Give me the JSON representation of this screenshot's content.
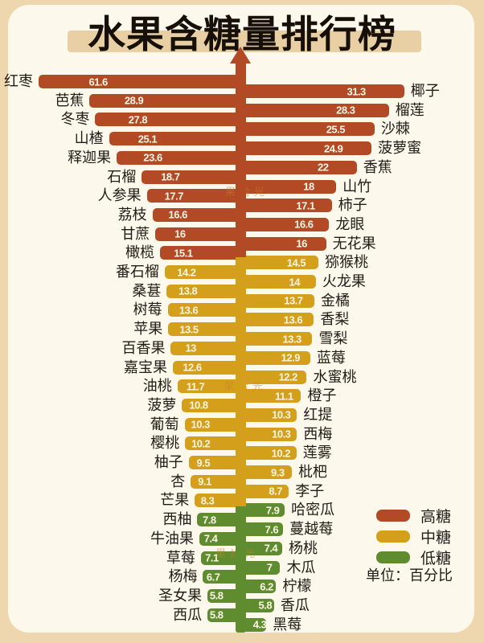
{
  "title": "水果含糖量排行榜",
  "unit_note": "单位：百分比",
  "watermark": "果拾光",
  "colors": {
    "high": "#b34a26",
    "mid": "#d4a01b",
    "low": "#5e8c2f",
    "panel": "#fdf8ec",
    "frame": "#eed7ae",
    "title_band": "#e9d0a4",
    "value_text": "#fdf6e6"
  },
  "legend": [
    {
      "label": "高糖",
      "level": "high"
    },
    {
      "label": "中糖",
      "level": "mid"
    },
    {
      "label": "低糖",
      "level": "low"
    }
  ],
  "chart_data": {
    "type": "bar",
    "orientation": "bidirectional-horizontal",
    "title": "水果含糖量排行榜",
    "unit": "百分比",
    "value_range": [
      0,
      62
    ],
    "left": [
      {
        "name": "红枣",
        "value": 61.6,
        "label": "61.6",
        "level": "high"
      },
      {
        "name": "芭蕉",
        "value": 28.9,
        "label": "28.9",
        "level": "high"
      },
      {
        "name": "冬枣",
        "value": 27.8,
        "label": "27.8",
        "level": "high"
      },
      {
        "name": "山楂",
        "value": 25.1,
        "label": "25.1",
        "level": "high"
      },
      {
        "name": "释迦果",
        "value": 23.6,
        "label": "23.6",
        "level": "high"
      },
      {
        "name": "石榴",
        "value": 18.7,
        "label": "18.7",
        "level": "high"
      },
      {
        "name": "人参果",
        "value": 17.7,
        "label": "17.7",
        "level": "high"
      },
      {
        "name": "荔枝",
        "value": 16.6,
        "label": "16.6",
        "level": "high"
      },
      {
        "name": "甘蔗",
        "value": 16,
        "label": "16",
        "level": "high"
      },
      {
        "name": "橄榄",
        "value": 15.1,
        "label": "15.1",
        "level": "high"
      },
      {
        "name": "番石榴",
        "value": 14.2,
        "label": "14.2",
        "level": "mid"
      },
      {
        "name": "桑葚",
        "value": 13.8,
        "label": "13.8",
        "level": "mid"
      },
      {
        "name": "树莓",
        "value": 13.6,
        "label": "13.6",
        "level": "mid"
      },
      {
        "name": "苹果",
        "value": 13.5,
        "label": "13.5",
        "level": "mid"
      },
      {
        "name": "百香果",
        "value": 13,
        "label": "13",
        "level": "mid"
      },
      {
        "name": "嘉宝果",
        "value": 12.6,
        "label": "12.6",
        "level": "mid"
      },
      {
        "name": "油桃",
        "value": 11.7,
        "label": "11.7",
        "level": "mid"
      },
      {
        "name": "菠萝",
        "value": 10.8,
        "label": "10.8",
        "level": "mid"
      },
      {
        "name": "葡萄",
        "value": 10.3,
        "label": "10.3",
        "level": "mid"
      },
      {
        "name": "樱桃",
        "value": 10.2,
        "label": "10.2",
        "level": "mid"
      },
      {
        "name": "柚子",
        "value": 9.5,
        "label": "9.5",
        "level": "mid"
      },
      {
        "name": "杏",
        "value": 9.1,
        "label": "9.1",
        "level": "mid"
      },
      {
        "name": "芒果",
        "value": 8.3,
        "label": "8.3",
        "level": "mid"
      },
      {
        "name": "西柚",
        "value": 7.8,
        "label": "7.8",
        "level": "low"
      },
      {
        "name": "牛油果",
        "value": 7.4,
        "label": "7.4",
        "level": "low"
      },
      {
        "name": "草莓",
        "value": 7.1,
        "label": "7.1",
        "level": "low"
      },
      {
        "name": "杨梅",
        "value": 6.7,
        "label": "6.7",
        "level": "low"
      },
      {
        "name": "圣女果",
        "value": 5.8,
        "label": "5.8",
        "level": "low"
      },
      {
        "name": "西瓜",
        "value": 5.8,
        "label": "5.8",
        "level": "low"
      }
    ],
    "right": [
      {
        "name": "椰子",
        "value": 31.3,
        "label": "31.3",
        "level": "high"
      },
      {
        "name": "榴莲",
        "value": 28.3,
        "label": "28.3",
        "level": "high"
      },
      {
        "name": "沙棘",
        "value": 25.5,
        "label": "25.5",
        "level": "high"
      },
      {
        "name": "菠萝蜜",
        "value": 24.9,
        "label": "24.9",
        "level": "high"
      },
      {
        "name": "香蕉",
        "value": 22,
        "label": "22",
        "level": "high"
      },
      {
        "name": "山竹",
        "value": 18,
        "label": "18",
        "level": "high"
      },
      {
        "name": "柿子",
        "value": 17.1,
        "label": "17.1",
        "level": "high"
      },
      {
        "name": "龙眼",
        "value": 16.6,
        "label": "16.6",
        "level": "high"
      },
      {
        "name": "无花果",
        "value": 16,
        "label": "16",
        "level": "high"
      },
      {
        "name": "猕猴桃",
        "value": 14.5,
        "label": "14.5",
        "level": "mid"
      },
      {
        "name": "火龙果",
        "value": 14,
        "label": "14",
        "level": "mid"
      },
      {
        "name": "金橘",
        "value": 13.7,
        "label": "13.7",
        "level": "mid"
      },
      {
        "name": "香梨",
        "value": 13.6,
        "label": "13.6",
        "level": "mid"
      },
      {
        "name": "雪梨",
        "value": 13.3,
        "label": "13.3",
        "level": "mid"
      },
      {
        "name": "蓝莓",
        "value": 12.9,
        "label": "12.9",
        "level": "mid"
      },
      {
        "name": "水蜜桃",
        "value": 12.2,
        "label": "12.2",
        "level": "mid"
      },
      {
        "name": "橙子",
        "value": 11.1,
        "label": "11.1",
        "level": "mid"
      },
      {
        "name": "红提",
        "value": 10.3,
        "label": "10.3",
        "level": "mid"
      },
      {
        "name": "西梅",
        "value": 10.3,
        "label": "10.3",
        "level": "mid"
      },
      {
        "name": "莲雾",
        "value": 10.2,
        "label": "10.2",
        "level": "mid"
      },
      {
        "name": "枇杷",
        "value": 9.3,
        "label": "9.3",
        "level": "mid"
      },
      {
        "name": "李子",
        "value": 8.7,
        "label": "8.7",
        "level": "mid"
      },
      {
        "name": "哈密瓜",
        "value": 7.9,
        "label": "7.9",
        "level": "low"
      },
      {
        "name": "蔓越莓",
        "value": 7.6,
        "label": "7.6",
        "level": "low"
      },
      {
        "name": "杨桃",
        "value": 7.4,
        "label": "7.4",
        "level": "low"
      },
      {
        "name": "木瓜",
        "value": 7,
        "label": "7",
        "level": "low"
      },
      {
        "name": "柠檬",
        "value": 6.2,
        "label": "6.2",
        "level": "low"
      },
      {
        "name": "香瓜",
        "value": 5.8,
        "label": "5.8",
        "level": "low"
      },
      {
        "name": "黑莓",
        "value": 4.3,
        "label": "4.3",
        "level": "low"
      }
    ]
  }
}
